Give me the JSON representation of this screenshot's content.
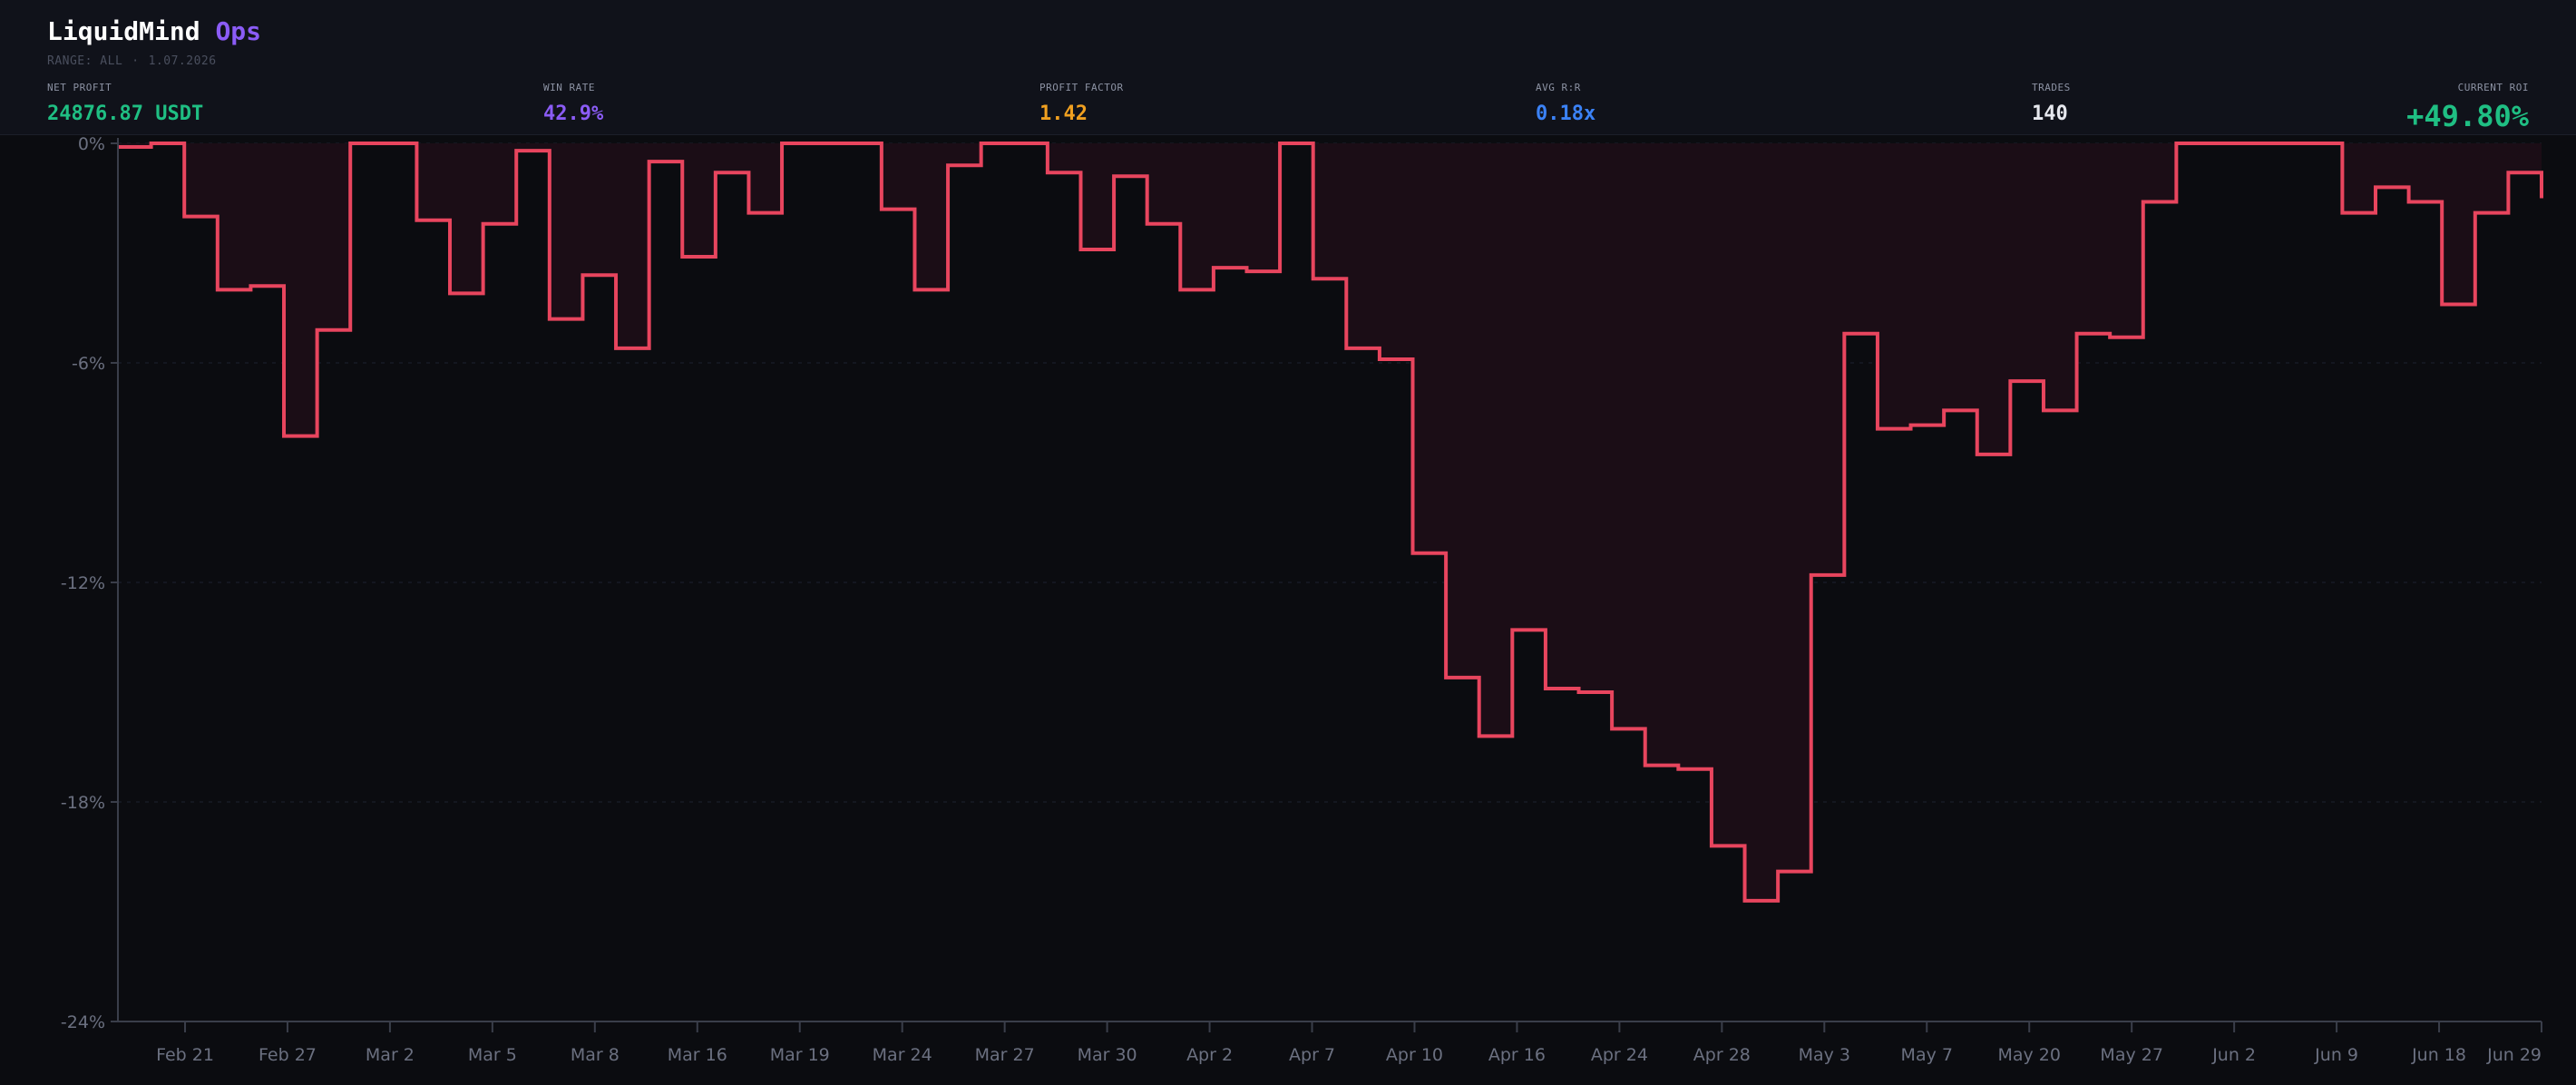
{
  "header": {
    "brand_main": "LiquidMind",
    "brand_accent": "Ops",
    "range_label": "RANGE: ALL",
    "range_sep": "·",
    "date": "1.07.2026"
  },
  "stats": [
    {
      "label": "NET PROFIT",
      "value": "24876.87 USDT",
      "color": "#1fbf83"
    },
    {
      "label": "WIN RATE",
      "value": "42.9%",
      "color": "#8b5cf6"
    },
    {
      "label": "PROFIT FACTOR",
      "value": "1.42",
      "color": "#f0a020"
    },
    {
      "label": "AVG R:R",
      "value": "0.18x",
      "color": "#3b82f6"
    },
    {
      "label": "TRADES",
      "value": "140",
      "color": "#e6e8ee"
    },
    {
      "label": "CURRENT ROI",
      "value": "+49.80%",
      "color": "#1fbf83"
    }
  ],
  "colors": {
    "line": "#e8455e",
    "fill": "#1b0d16",
    "axis": "#3a3e4a",
    "grid": "#1e2230"
  },
  "chart_data": {
    "type": "area",
    "step": true,
    "ylim": [
      -24,
      0
    ],
    "yticks": [
      "0%",
      "-6%",
      "-12%",
      "-18%",
      "-24%"
    ],
    "ytick_values": [
      0,
      -6,
      -12,
      -18,
      -24
    ],
    "grid": true,
    "xtick_labels": [
      "Feb 21",
      "Feb 27",
      "Mar 2",
      "Mar 5",
      "Mar 8",
      "Mar 16",
      "Mar 19",
      "Mar 24",
      "Mar 27",
      "Mar 30",
      "Apr 2",
      "Apr 7",
      "Apr 10",
      "Apr 16",
      "Apr 24",
      "Apr 28",
      "May 3",
      "May 7",
      "May 20",
      "May 27",
      "Jun 2",
      "Jun 9",
      "Jun 18",
      "Jun 29"
    ],
    "series": [
      {
        "values": [
          -0.1,
          0,
          -2.0,
          -4.0,
          -3.9,
          -8.0,
          -5.1,
          0,
          0,
          -2.1,
          -4.1,
          -2.2,
          -0.2,
          -4.8,
          -3.6,
          -5.6,
          -0.5,
          -3.1,
          -0.8,
          -1.9,
          0,
          0,
          0,
          -1.8,
          -4.0,
          -0.6,
          0,
          0,
          -0.8,
          -2.9,
          -0.9,
          -2.2,
          -4.0,
          -3.4,
          -3.5,
          0,
          -3.7,
          -5.6,
          -5.9,
          -11.2,
          -14.6,
          -16.2,
          -13.3,
          -14.9,
          -15.0,
          -16.0,
          -17.0,
          -17.1,
          -19.2,
          -20.7,
          -19.9,
          -11.8,
          -5.2,
          -7.8,
          -7.7,
          -7.3,
          -8.5,
          -6.5,
          -7.3,
          -5.2,
          -5.3,
          -1.6,
          0,
          0,
          0,
          0,
          0,
          -1.9,
          -1.2,
          -1.6,
          -4.4,
          -1.9,
          -0.8,
          -1.5
        ]
      }
    ]
  }
}
